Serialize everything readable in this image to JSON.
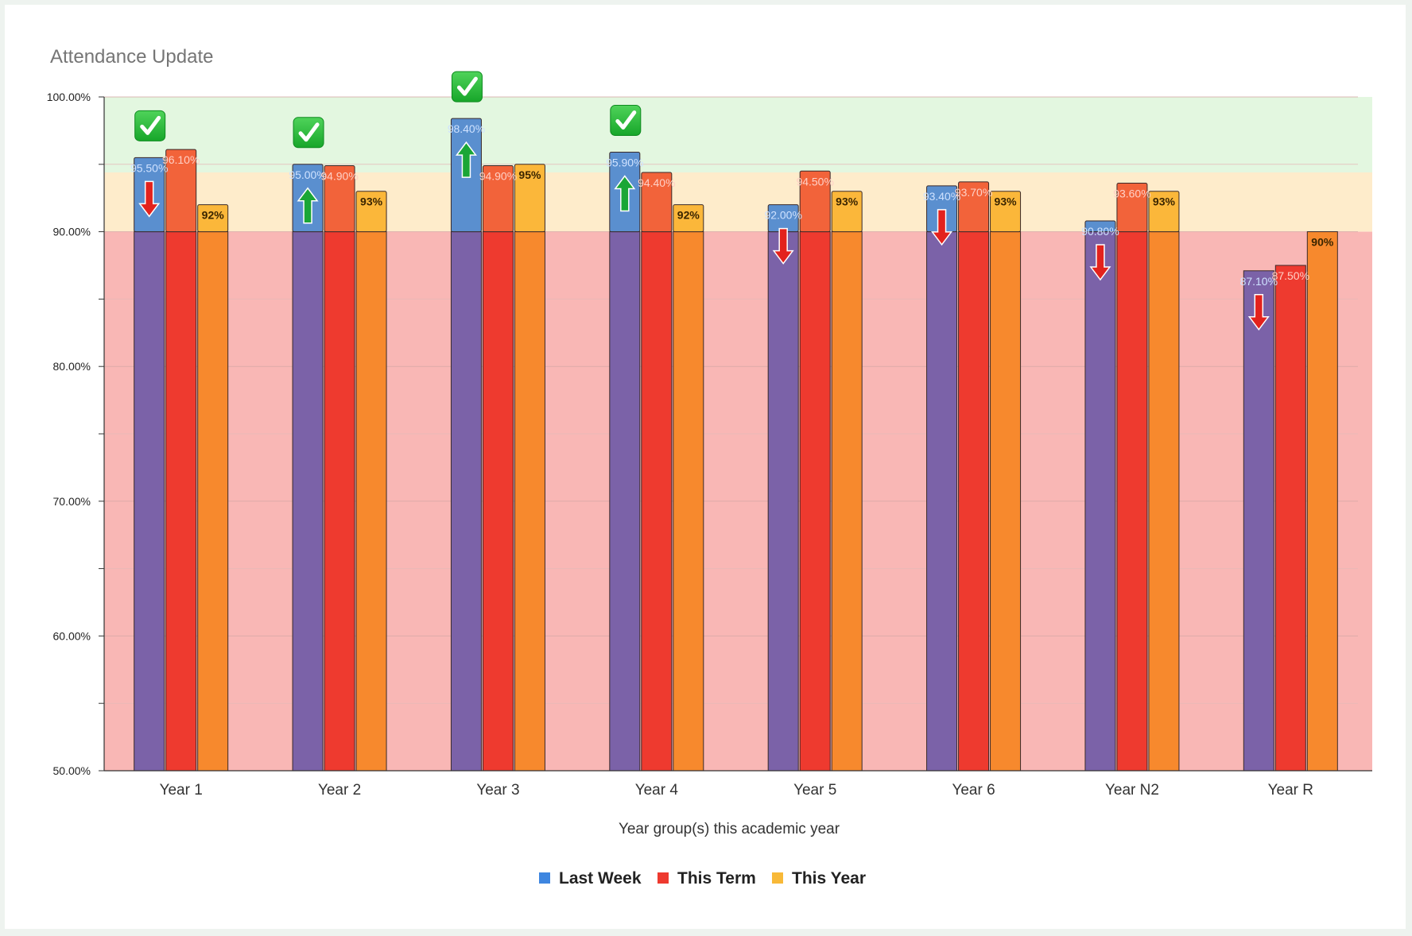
{
  "chart_data": {
    "type": "bar",
    "title": "Attendance Update",
    "xlabel": "Year group(s) this academic year",
    "ylabel": "",
    "ylim": [
      50,
      100
    ],
    "yticks": [
      "50.00%",
      "60.00%",
      "70.00%",
      "80.00%",
      "90.00%",
      "100.00%"
    ],
    "bands": [
      {
        "from": 94.4,
        "to": 100,
        "color": "#e3f7e0"
      },
      {
        "from": 90,
        "to": 94.4,
        "color": "#feeccb"
      },
      {
        "from": 50,
        "to": 90,
        "color": "#f9b7b5"
      }
    ],
    "categories": [
      "Year 1",
      "Year 2",
      "Year 3",
      "Year 4",
      "Year 5",
      "Year 6",
      "Year N2",
      "Year R"
    ],
    "series": [
      {
        "name": "Last Week",
        "color": "#3e86e0",
        "values": [
          95.5,
          95.0,
          98.4,
          95.9,
          92.0,
          93.4,
          90.8,
          87.1
        ],
        "labels": [
          "95.50%",
          "95.00%",
          "98.40%",
          "95.90%",
          "92.00%",
          "93.40%",
          "90.80%",
          "87.10%"
        ]
      },
      {
        "name": "This Term",
        "color": "#ee3a2f",
        "values": [
          96.1,
          94.9,
          94.9,
          94.4,
          94.5,
          93.7,
          93.6,
          87.5
        ],
        "labels": [
          "96.10%",
          "94.90%",
          "94.90%",
          "94.40%",
          "94.50%",
          "93.70%",
          "93.60%",
          "87.50%"
        ]
      },
      {
        "name": "This Year",
        "color": "#f8b938",
        "values": [
          92,
          93,
          95,
          92,
          93,
          93,
          93,
          90
        ],
        "labels": [
          "92%",
          "93%",
          "95%",
          "92%",
          "93%",
          "93%",
          "93%",
          "90%"
        ]
      }
    ],
    "trend_arrows": [
      "down",
      "up",
      "up",
      "up",
      "down",
      "down",
      "down",
      "down"
    ],
    "checkmarks": [
      true,
      true,
      true,
      true,
      false,
      false,
      false,
      false
    ],
    "legend_position": "bottom-center"
  }
}
